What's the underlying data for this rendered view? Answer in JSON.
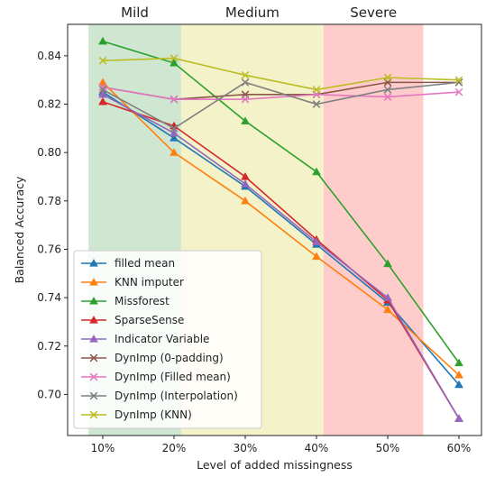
{
  "chart_data": {
    "type": "line",
    "xlabel": "Level of added missingness",
    "ylabel": "Balanced Accuracy",
    "categories": [
      "10%",
      "20%",
      "30%",
      "40%",
      "50%",
      "60%"
    ],
    "ylim": [
      0.683,
      0.853
    ],
    "yticks": [
      "0.70",
      "0.72",
      "0.74",
      "0.76",
      "0.78",
      "0.80",
      "0.82",
      "0.84"
    ],
    "grid": false,
    "legend_position": "bottom-left",
    "bands": [
      {
        "label": "Mild",
        "from": 0.0,
        "to": 1.3,
        "color": "#cfe6d0"
      },
      {
        "label": "Medium",
        "from": 1.3,
        "to": 3.3,
        "color": "#f3f2c9"
      },
      {
        "label": "Severe",
        "from": 3.3,
        "to": 4.7,
        "color": "#ffcccc"
      }
    ],
    "series": [
      {
        "name": "filled mean",
        "color": "#1f77b4",
        "marker": "triangle",
        "values": [
          0.825,
          0.806,
          0.786,
          0.762,
          0.738,
          0.704
        ]
      },
      {
        "name": "KNN imputer",
        "color": "#ff7f0e",
        "marker": "triangle",
        "values": [
          0.829,
          0.8,
          0.78,
          0.757,
          0.735,
          0.708
        ]
      },
      {
        "name": "Missforest",
        "color": "#2ca02c",
        "marker": "triangle",
        "values": [
          0.846,
          0.837,
          0.813,
          0.792,
          0.754,
          0.713
        ]
      },
      {
        "name": "SparseSense",
        "color": "#d62728",
        "marker": "triangle",
        "values": [
          0.821,
          0.811,
          0.79,
          0.764,
          0.739,
          0.69
        ]
      },
      {
        "name": "Indicator Variable",
        "color": "#9467bd",
        "marker": "triangle",
        "values": [
          0.824,
          0.808,
          0.787,
          0.763,
          0.74,
          0.69
        ]
      },
      {
        "name": "DynImp (0-padding)",
        "color": "#8c564b",
        "marker": "x",
        "values": [
          0.827,
          0.822,
          0.824,
          0.824,
          0.829,
          0.829
        ]
      },
      {
        "name": "DynImp (Filled mean)",
        "color": "#e377c2",
        "marker": "x",
        "values": [
          0.827,
          0.822,
          0.822,
          0.824,
          0.823,
          0.825
        ]
      },
      {
        "name": "DynImp (Interpolation)",
        "color": "#7f7f7f",
        "marker": "x",
        "values": [
          0.826,
          0.81,
          0.829,
          0.82,
          0.826,
          0.829
        ]
      },
      {
        "name": "DynImp (KNN)",
        "color": "#bcbd22",
        "marker": "x",
        "values": [
          0.838,
          0.839,
          0.832,
          0.826,
          0.831,
          0.83
        ]
      }
    ]
  }
}
